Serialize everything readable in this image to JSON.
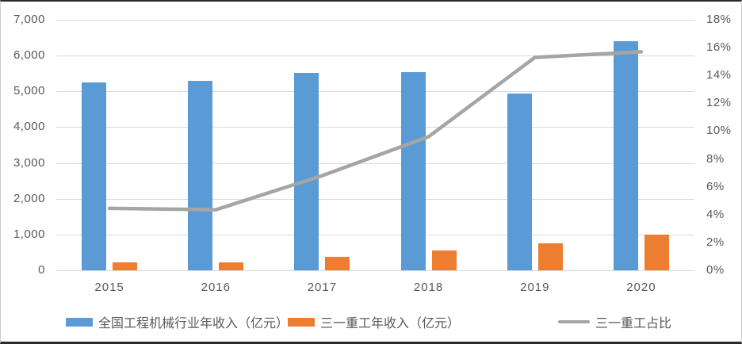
{
  "chart_data": {
    "type": "bar",
    "subtype": "combo-bar-line-dual-axis",
    "title": "",
    "categories": [
      "2015",
      "2016",
      "2017",
      "2018",
      "2019",
      "2020"
    ],
    "series": [
      {
        "name": "全国工程机械行业年收入（亿元）",
        "type": "bar",
        "axis": "left",
        "color": "#5b9bd5",
        "values": [
          5250,
          5300,
          5520,
          5550,
          4940,
          6400
        ]
      },
      {
        "name": "三一重工年收入（亿元）",
        "type": "bar",
        "axis": "left",
        "color": "#ed7d31",
        "values": [
          233,
          232,
          383,
          558,
          757,
          1000
        ]
      },
      {
        "name": "三一重工占比",
        "type": "line",
        "axis": "right",
        "color": "#a5a5a5",
        "values": [
          4.45,
          4.35,
          6.8,
          9.6,
          15.3,
          15.7
        ]
      }
    ],
    "left_axis": {
      "min": 0,
      "max": 7000,
      "step": 1000,
      "tick_labels": [
        "0",
        "1,000",
        "2,000",
        "3,000",
        "4,000",
        "5,000",
        "6,000",
        "7,000"
      ]
    },
    "right_axis": {
      "min": 0,
      "max": 18,
      "step": 2,
      "tick_labels": [
        "0%",
        "2%",
        "4%",
        "6%",
        "8%",
        "10%",
        "12%",
        "14%",
        "16%",
        "18%"
      ]
    },
    "grid": true,
    "legend_position": "bottom",
    "colors": {
      "grid": "#d9d9d9",
      "axis_text": "#595959",
      "background": "#ffffff"
    }
  }
}
